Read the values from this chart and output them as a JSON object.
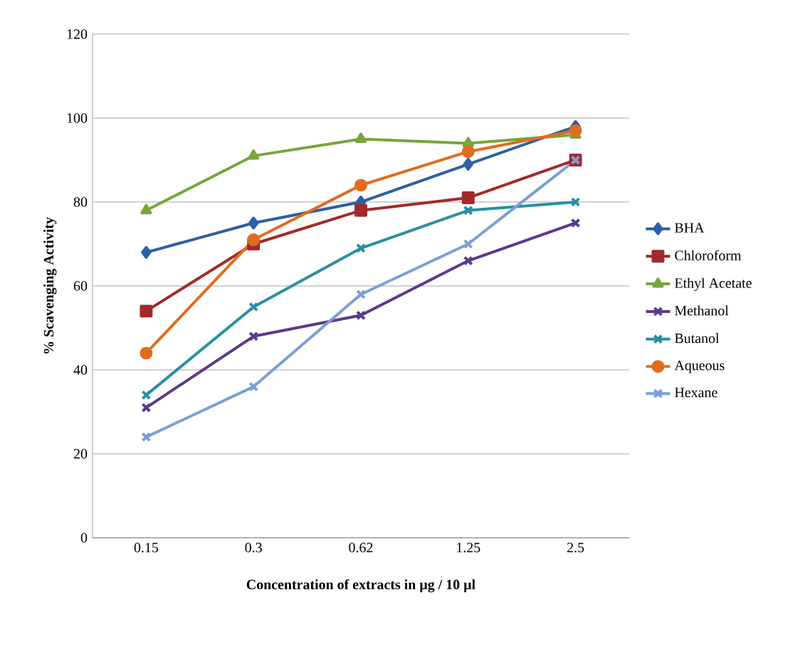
{
  "chart_data": {
    "type": "line",
    "xlabel": "Concentration of extracts in µg / 10 µl",
    "ylabel": "% Scavenging Activity",
    "categories": [
      "0.15",
      "0.3",
      "0.62",
      "1.25",
      "2.5"
    ],
    "ylim": [
      0,
      120
    ],
    "yticks": [
      0,
      20,
      40,
      60,
      80,
      100,
      120
    ],
    "grid": "y",
    "legend": "right",
    "series": [
      {
        "name": "BHA",
        "color": "#2e5fa3",
        "marker": "diamond",
        "values": [
          68,
          75,
          80,
          89,
          98
        ]
      },
      {
        "name": "Chloroform",
        "color": "#a32a2a",
        "marker": "square",
        "values": [
          54,
          70,
          78,
          81,
          90
        ]
      },
      {
        "name": "Ethyl Acetate",
        "color": "#77a63a",
        "marker": "triangle",
        "values": [
          78,
          91,
          95,
          94,
          96
        ]
      },
      {
        "name": "Methanol",
        "color": "#5b3a8c",
        "marker": "cross",
        "values": [
          31,
          48,
          53,
          66,
          75
        ]
      },
      {
        "name": "Butanol",
        "color": "#2a8fa3",
        "marker": "cross",
        "values": [
          34,
          55,
          69,
          78,
          80
        ]
      },
      {
        "name": "Aqueous",
        "color": "#e06c1f",
        "marker": "circle",
        "values": [
          44,
          71,
          84,
          92,
          97
        ]
      },
      {
        "name": "Hexane",
        "color": "#7b9fd4",
        "marker": "cross",
        "values": [
          24,
          36,
          58,
          70,
          90
        ]
      }
    ]
  }
}
